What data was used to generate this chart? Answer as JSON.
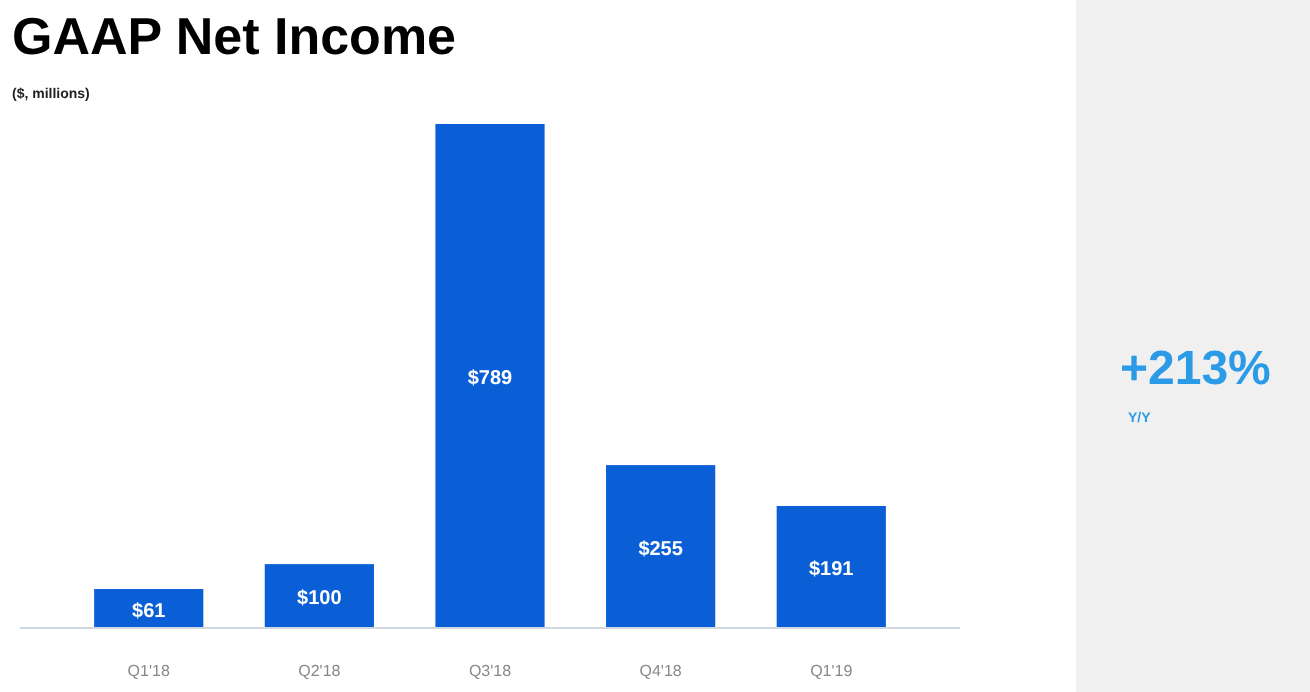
{
  "chart_data": {
    "type": "bar",
    "title": "GAAP Net Income",
    "subtitle": "($, millions)",
    "categories": [
      "Q1'18",
      "Q2'18",
      "Q3'18",
      "Q4'18",
      "Q1'19"
    ],
    "values": [
      61,
      100,
      789,
      255,
      191
    ],
    "value_labels": [
      "$61",
      "$100",
      "$789",
      "$255",
      "$191"
    ],
    "color": "#0a5fd6",
    "annotations": [
      "+213%",
      "Y/Y"
    ]
  }
}
